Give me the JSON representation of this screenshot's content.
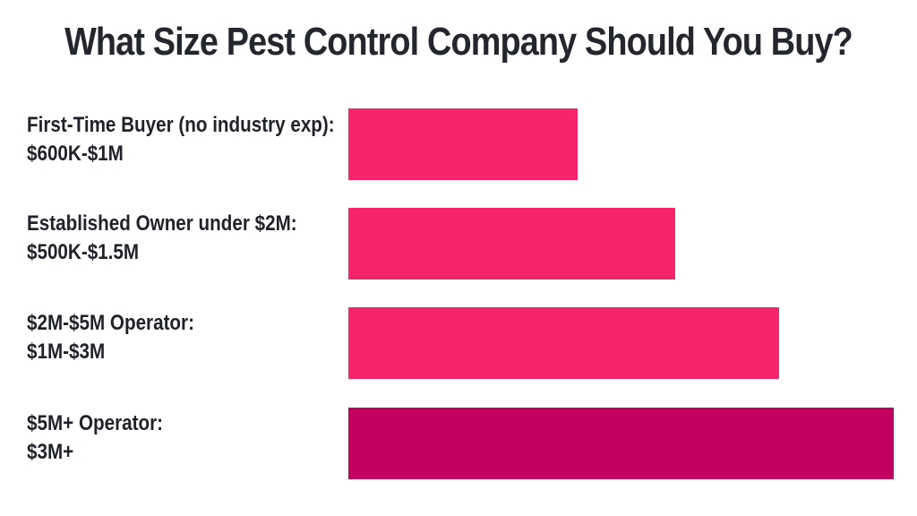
{
  "chart_data": {
    "type": "bar",
    "orientation": "horizontal",
    "title": "What Size Pest Control Company Should You Buy?",
    "categories": [
      {
        "name": "First-Time Buyer (no industry exp):",
        "range": "$600K-$1M"
      },
      {
        "name": "Established Owner under $2M:",
        "range": "$500K-$1.5M"
      },
      {
        "name": "$2M-$5M Operator:",
        "range": "$1M-$3M"
      },
      {
        "name": "$5M+ Operator:",
        "range": "$3M+"
      }
    ],
    "values": [
      0.42,
      0.6,
      0.79,
      1.0
    ],
    "colors": [
      "#f5246b",
      "#f5246b",
      "#f5246b",
      "#c2005d"
    ],
    "grid": false,
    "legend": "none"
  }
}
